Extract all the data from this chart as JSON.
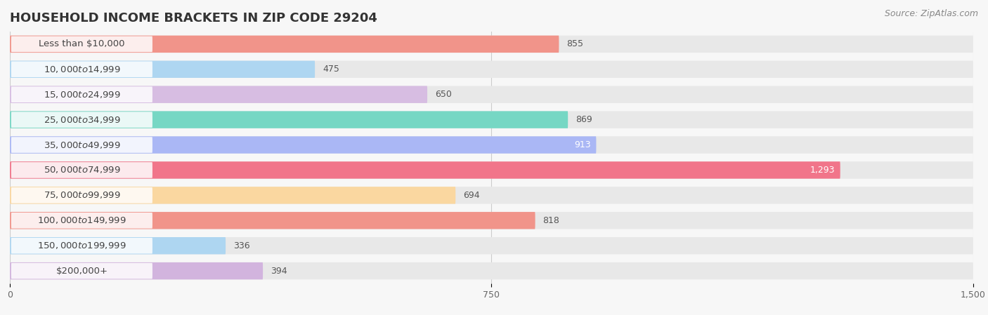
{
  "title": "HOUSEHOLD INCOME BRACKETS IN ZIP CODE 29204",
  "source": "Source: ZipAtlas.com",
  "categories": [
    "Less than $10,000",
    "$10,000 to $14,999",
    "$15,000 to $24,999",
    "$25,000 to $34,999",
    "$35,000 to $49,999",
    "$50,000 to $74,999",
    "$75,000 to $99,999",
    "$100,000 to $149,999",
    "$150,000 to $199,999",
    "$200,000+"
  ],
  "values": [
    855,
    475,
    650,
    869,
    913,
    1293,
    694,
    818,
    336,
    394
  ],
  "bar_colors": [
    "#F1948A",
    "#AED6F1",
    "#D7BDE2",
    "#76D7C4",
    "#AAB7F5",
    "#F1758A",
    "#FAD7A0",
    "#F1948A",
    "#AED6F1",
    "#D2B4DE"
  ],
  "value_inside": [
    false,
    false,
    false,
    false,
    true,
    true,
    false,
    false,
    false,
    false
  ],
  "xlim": [
    0,
    1500
  ],
  "xticks": [
    0,
    750,
    1500
  ],
  "background_color": "#f7f7f7",
  "bar_bg_color": "#e8e8e8",
  "row_bg_color": "#f0f0f0",
  "title_fontsize": 13,
  "label_fontsize": 9.5,
  "value_fontsize": 9,
  "source_fontsize": 9,
  "bar_height": 0.68,
  "label_box_color": "#ffffff"
}
